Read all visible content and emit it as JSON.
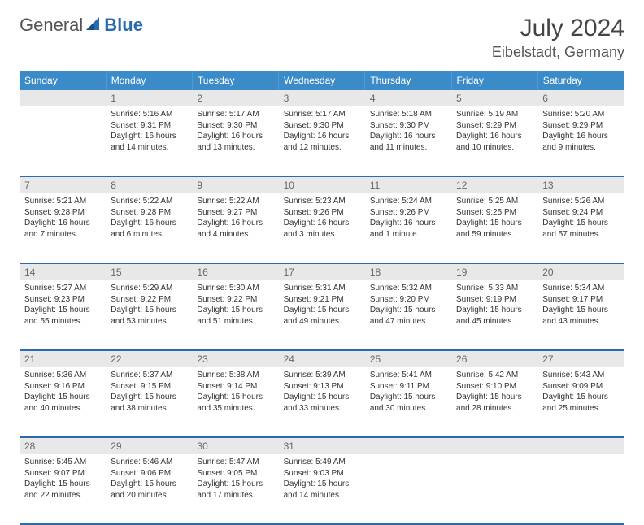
{
  "logo": {
    "general": "General",
    "blue": "Blue"
  },
  "title": {
    "month_year": "July 2024",
    "location": "Eibelstadt, Germany"
  },
  "colors": {
    "header_bg": "#3b8bc9",
    "header_text": "#ffffff",
    "daynum_bg": "#e8e8e8",
    "daynum_text": "#666666",
    "border": "#2a6bb0",
    "body_text": "#333333",
    "logo_blue": "#2a6bb0"
  },
  "days_of_week": [
    "Sunday",
    "Monday",
    "Tuesday",
    "Wednesday",
    "Thursday",
    "Friday",
    "Saturday"
  ],
  "weeks": [
    {
      "nums": [
        "",
        "1",
        "2",
        "3",
        "4",
        "5",
        "6"
      ],
      "cells": [
        {},
        {
          "sunrise": "Sunrise: 5:16 AM",
          "sunset": "Sunset: 9:31 PM",
          "daylight": "Daylight: 16 hours and 14 minutes."
        },
        {
          "sunrise": "Sunrise: 5:17 AM",
          "sunset": "Sunset: 9:30 PM",
          "daylight": "Daylight: 16 hours and 13 minutes."
        },
        {
          "sunrise": "Sunrise: 5:17 AM",
          "sunset": "Sunset: 9:30 PM",
          "daylight": "Daylight: 16 hours and 12 minutes."
        },
        {
          "sunrise": "Sunrise: 5:18 AM",
          "sunset": "Sunset: 9:30 PM",
          "daylight": "Daylight: 16 hours and 11 minutes."
        },
        {
          "sunrise": "Sunrise: 5:19 AM",
          "sunset": "Sunset: 9:29 PM",
          "daylight": "Daylight: 16 hours and 10 minutes."
        },
        {
          "sunrise": "Sunrise: 5:20 AM",
          "sunset": "Sunset: 9:29 PM",
          "daylight": "Daylight: 16 hours and 9 minutes."
        }
      ]
    },
    {
      "nums": [
        "7",
        "8",
        "9",
        "10",
        "11",
        "12",
        "13"
      ],
      "cells": [
        {
          "sunrise": "Sunrise: 5:21 AM",
          "sunset": "Sunset: 9:28 PM",
          "daylight": "Daylight: 16 hours and 7 minutes."
        },
        {
          "sunrise": "Sunrise: 5:22 AM",
          "sunset": "Sunset: 9:28 PM",
          "daylight": "Daylight: 16 hours and 6 minutes."
        },
        {
          "sunrise": "Sunrise: 5:22 AM",
          "sunset": "Sunset: 9:27 PM",
          "daylight": "Daylight: 16 hours and 4 minutes."
        },
        {
          "sunrise": "Sunrise: 5:23 AM",
          "sunset": "Sunset: 9:26 PM",
          "daylight": "Daylight: 16 hours and 3 minutes."
        },
        {
          "sunrise": "Sunrise: 5:24 AM",
          "sunset": "Sunset: 9:26 PM",
          "daylight": "Daylight: 16 hours and 1 minute."
        },
        {
          "sunrise": "Sunrise: 5:25 AM",
          "sunset": "Sunset: 9:25 PM",
          "daylight": "Daylight: 15 hours and 59 minutes."
        },
        {
          "sunrise": "Sunrise: 5:26 AM",
          "sunset": "Sunset: 9:24 PM",
          "daylight": "Daylight: 15 hours and 57 minutes."
        }
      ]
    },
    {
      "nums": [
        "14",
        "15",
        "16",
        "17",
        "18",
        "19",
        "20"
      ],
      "cells": [
        {
          "sunrise": "Sunrise: 5:27 AM",
          "sunset": "Sunset: 9:23 PM",
          "daylight": "Daylight: 15 hours and 55 minutes."
        },
        {
          "sunrise": "Sunrise: 5:29 AM",
          "sunset": "Sunset: 9:22 PM",
          "daylight": "Daylight: 15 hours and 53 minutes."
        },
        {
          "sunrise": "Sunrise: 5:30 AM",
          "sunset": "Sunset: 9:22 PM",
          "daylight": "Daylight: 15 hours and 51 minutes."
        },
        {
          "sunrise": "Sunrise: 5:31 AM",
          "sunset": "Sunset: 9:21 PM",
          "daylight": "Daylight: 15 hours and 49 minutes."
        },
        {
          "sunrise": "Sunrise: 5:32 AM",
          "sunset": "Sunset: 9:20 PM",
          "daylight": "Daylight: 15 hours and 47 minutes."
        },
        {
          "sunrise": "Sunrise: 5:33 AM",
          "sunset": "Sunset: 9:19 PM",
          "daylight": "Daylight: 15 hours and 45 minutes."
        },
        {
          "sunrise": "Sunrise: 5:34 AM",
          "sunset": "Sunset: 9:17 PM",
          "daylight": "Daylight: 15 hours and 43 minutes."
        }
      ]
    },
    {
      "nums": [
        "21",
        "22",
        "23",
        "24",
        "25",
        "26",
        "27"
      ],
      "cells": [
        {
          "sunrise": "Sunrise: 5:36 AM",
          "sunset": "Sunset: 9:16 PM",
          "daylight": "Daylight: 15 hours and 40 minutes."
        },
        {
          "sunrise": "Sunrise: 5:37 AM",
          "sunset": "Sunset: 9:15 PM",
          "daylight": "Daylight: 15 hours and 38 minutes."
        },
        {
          "sunrise": "Sunrise: 5:38 AM",
          "sunset": "Sunset: 9:14 PM",
          "daylight": "Daylight: 15 hours and 35 minutes."
        },
        {
          "sunrise": "Sunrise: 5:39 AM",
          "sunset": "Sunset: 9:13 PM",
          "daylight": "Daylight: 15 hours and 33 minutes."
        },
        {
          "sunrise": "Sunrise: 5:41 AM",
          "sunset": "Sunset: 9:11 PM",
          "daylight": "Daylight: 15 hours and 30 minutes."
        },
        {
          "sunrise": "Sunrise: 5:42 AM",
          "sunset": "Sunset: 9:10 PM",
          "daylight": "Daylight: 15 hours and 28 minutes."
        },
        {
          "sunrise": "Sunrise: 5:43 AM",
          "sunset": "Sunset: 9:09 PM",
          "daylight": "Daylight: 15 hours and 25 minutes."
        }
      ]
    },
    {
      "nums": [
        "28",
        "29",
        "30",
        "31",
        "",
        "",
        ""
      ],
      "cells": [
        {
          "sunrise": "Sunrise: 5:45 AM",
          "sunset": "Sunset: 9:07 PM",
          "daylight": "Daylight: 15 hours and 22 minutes."
        },
        {
          "sunrise": "Sunrise: 5:46 AM",
          "sunset": "Sunset: 9:06 PM",
          "daylight": "Daylight: 15 hours and 20 minutes."
        },
        {
          "sunrise": "Sunrise: 5:47 AM",
          "sunset": "Sunset: 9:05 PM",
          "daylight": "Daylight: 15 hours and 17 minutes."
        },
        {
          "sunrise": "Sunrise: 5:49 AM",
          "sunset": "Sunset: 9:03 PM",
          "daylight": "Daylight: 15 hours and 14 minutes."
        },
        {},
        {},
        {}
      ]
    }
  ]
}
